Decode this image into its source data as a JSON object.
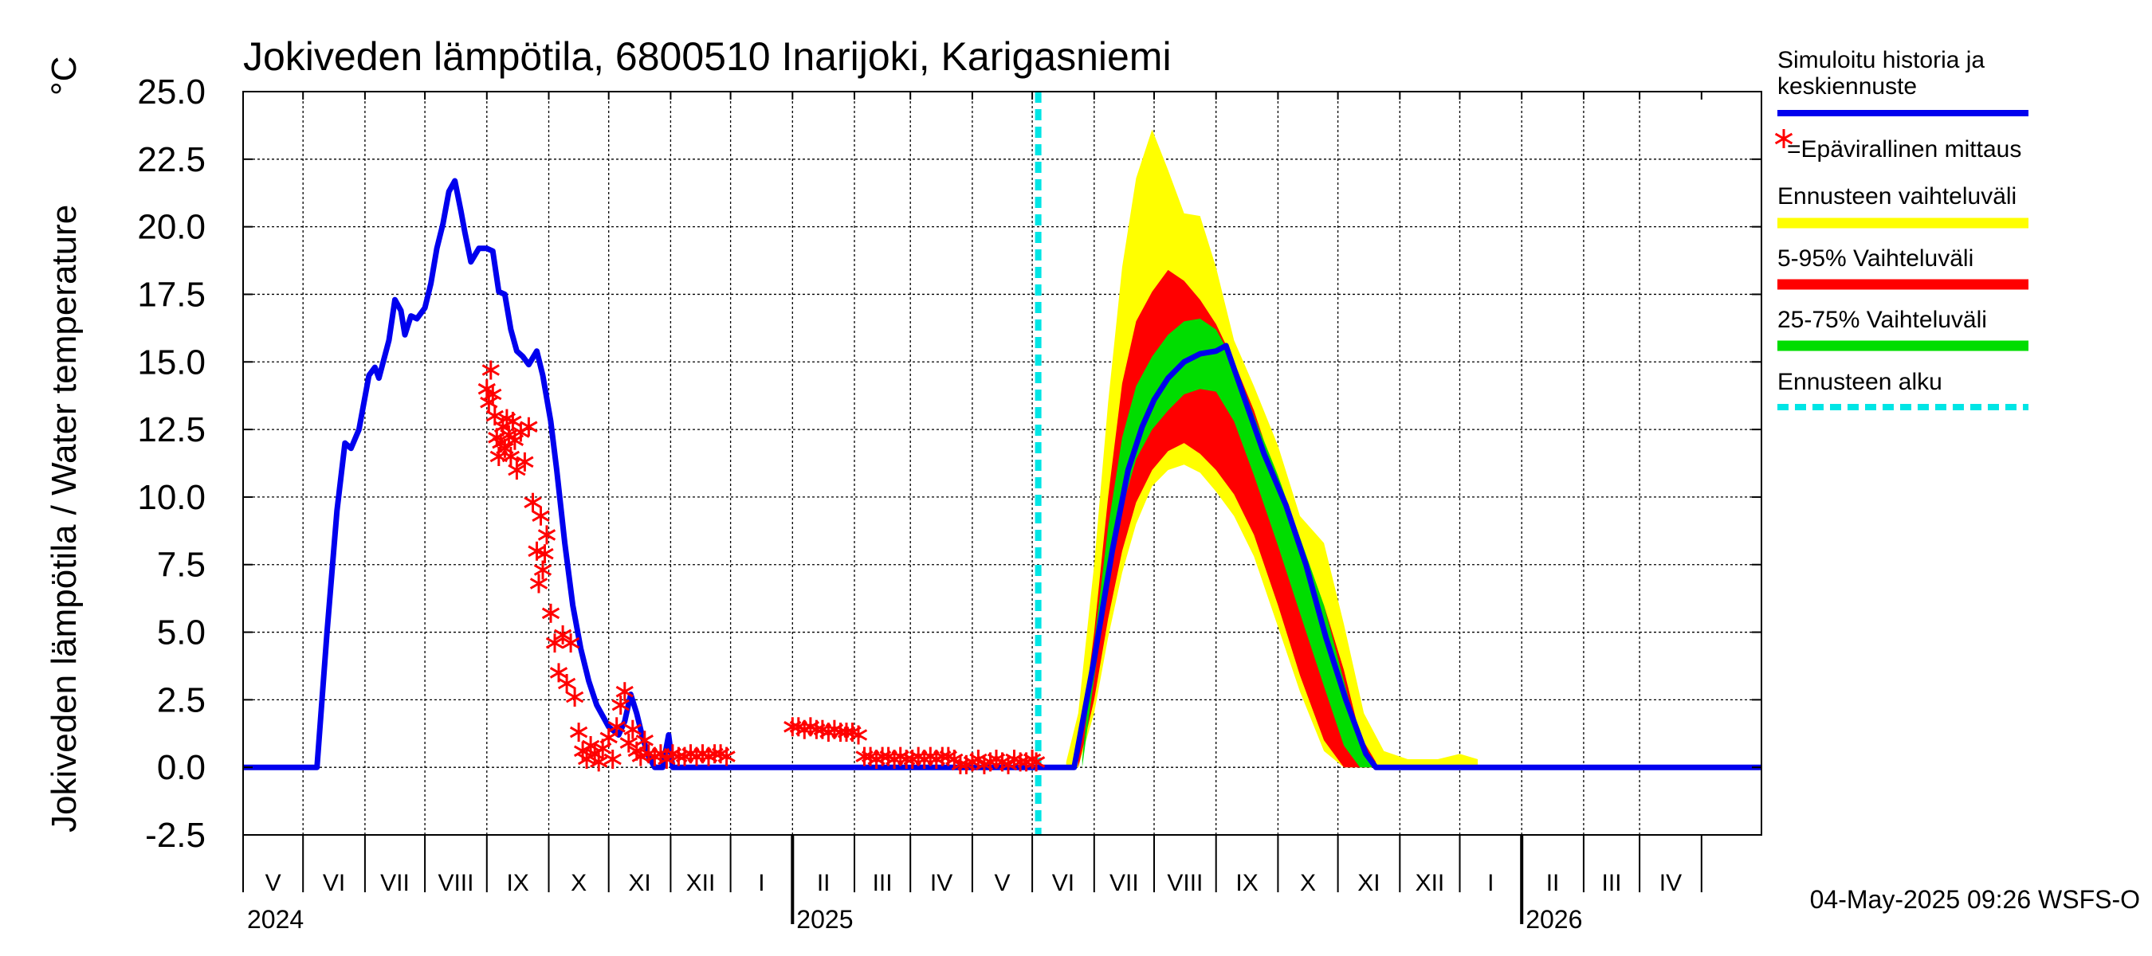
{
  "colors": {
    "simulated": "#0000ee",
    "observed": "#ff0000",
    "range_full": "#ffff00",
    "range_5_95": "#ff0000",
    "range_25_75": "#00dd00",
    "forecast_start": "#00e5e5"
  },
  "chart_data": {
    "type": "line",
    "title": "Jokiveden lämpötila, 6800510 Inarijoki, Karigasniemi",
    "ylabel": "Jokiveden lämpötila / Water temperature",
    "yunit": "°C",
    "ylim": [
      -2.5,
      25.0
    ],
    "yticks": [
      "25.0",
      "22.5",
      "20.0",
      "17.5",
      "15.0",
      "12.5",
      "10.0",
      "7.5",
      "5.0",
      "2.5",
      "0.0",
      "-2.5"
    ],
    "xlim": [
      "2024-04-01",
      "2026-05-01"
    ],
    "x_months": [
      "V",
      "VI",
      "VII",
      "VIII",
      "IX",
      "X",
      "XI",
      "XII",
      "I",
      "II",
      "III",
      "IV",
      "V",
      "VI",
      "VII",
      "VIII",
      "IX",
      "X",
      "XI",
      "XII",
      "I",
      "II",
      "III",
      "IV"
    ],
    "x_years": [
      "2024",
      "2025",
      "2026"
    ],
    "grid": true,
    "forecast_start_date": "2025-05-04",
    "legend": {
      "items": [
        {
          "label": "Simuloitu historia ja",
          "label2": "keskiennuste",
          "color": "#0000ee",
          "style": "line"
        },
        {
          "label": "=Epävirallinen mittaus",
          "color": "#ff0000",
          "style": "marker"
        },
        {
          "label": "Ennusteen vaihteluväli",
          "color": "#ffff00",
          "style": "band"
        },
        {
          "label": "5-95% Vaihteluväli",
          "color": "#ff0000",
          "style": "band"
        },
        {
          "label": "25-75% Vaihteluväli",
          "color": "#00dd00",
          "style": "band"
        },
        {
          "label": "Ennusteen alku",
          "color": "#00e5e5",
          "style": "dashed"
        }
      ]
    },
    "footer": "04-May-2025 09:26 WSFS-O",
    "series": [
      {
        "name": "Simuloitu historia ja keskiennuste",
        "kind": "line",
        "points": [
          [
            "2024-04-01",
            0.0
          ],
          [
            "2024-05-08",
            0.0
          ],
          [
            "2024-05-13",
            5.0
          ],
          [
            "2024-05-18",
            9.5
          ],
          [
            "2024-05-22",
            12.0
          ],
          [
            "2024-05-25",
            11.8
          ],
          [
            "2024-05-29",
            12.5
          ],
          [
            "2024-06-03",
            14.5
          ],
          [
            "2024-06-06",
            14.8
          ],
          [
            "2024-06-08",
            14.4
          ],
          [
            "2024-06-13",
            15.8
          ],
          [
            "2024-06-16",
            17.3
          ],
          [
            "2024-06-19",
            16.9
          ],
          [
            "2024-06-21",
            16.0
          ],
          [
            "2024-06-24",
            16.7
          ],
          [
            "2024-06-27",
            16.6
          ],
          [
            "2024-07-01",
            17.0
          ],
          [
            "2024-07-04",
            17.9
          ],
          [
            "2024-07-07",
            19.2
          ],
          [
            "2024-07-10",
            20.1
          ],
          [
            "2024-07-13",
            21.3
          ],
          [
            "2024-07-16",
            21.7
          ],
          [
            "2024-07-19",
            20.6
          ],
          [
            "2024-07-21",
            19.8
          ],
          [
            "2024-07-24",
            18.7
          ],
          [
            "2024-07-28",
            19.2
          ],
          [
            "2024-08-01",
            19.2
          ],
          [
            "2024-08-04",
            19.1
          ],
          [
            "2024-08-07",
            17.6
          ],
          [
            "2024-08-10",
            17.5
          ],
          [
            "2024-08-13",
            16.2
          ],
          [
            "2024-08-16",
            15.4
          ],
          [
            "2024-08-19",
            15.2
          ],
          [
            "2024-08-22",
            14.9
          ],
          [
            "2024-08-26",
            15.4
          ],
          [
            "2024-08-29",
            14.5
          ],
          [
            "2024-09-02",
            12.8
          ],
          [
            "2024-09-05",
            11.0
          ],
          [
            "2024-09-09",
            8.3
          ],
          [
            "2024-09-13",
            6.0
          ],
          [
            "2024-09-17",
            4.4
          ],
          [
            "2024-09-21",
            3.2
          ],
          [
            "2024-09-25",
            2.3
          ],
          [
            "2024-10-01",
            1.5
          ],
          [
            "2024-10-06",
            1.2
          ],
          [
            "2024-10-09",
            1.7
          ],
          [
            "2024-10-12",
            2.7
          ],
          [
            "2024-10-15",
            2.0
          ],
          [
            "2024-10-18",
            1.1
          ],
          [
            "2024-10-21",
            0.4
          ],
          [
            "2024-10-24",
            0.0
          ],
          [
            "2024-10-28",
            0.0
          ],
          [
            "2024-10-31",
            1.2
          ],
          [
            "2024-11-02",
            0.0
          ],
          [
            "2025-05-10",
            0.0
          ],
          [
            "2025-05-22",
            0.0
          ],
          [
            "2025-06-01",
            4.0
          ],
          [
            "2025-06-10",
            8.0
          ],
          [
            "2025-06-18",
            11.0
          ],
          [
            "2025-06-25",
            12.6
          ],
          [
            "2025-07-01",
            13.6
          ],
          [
            "2025-07-08",
            14.4
          ],
          [
            "2025-07-16",
            15.0
          ],
          [
            "2025-07-24",
            15.3
          ],
          [
            "2025-08-01",
            15.4
          ],
          [
            "2025-08-06",
            15.6
          ],
          [
            "2025-08-15",
            13.7
          ],
          [
            "2025-08-25",
            11.6
          ],
          [
            "2025-09-05",
            9.7
          ],
          [
            "2025-09-15",
            7.5
          ],
          [
            "2025-09-25",
            4.8
          ],
          [
            "2025-10-05",
            2.5
          ],
          [
            "2025-10-15",
            0.5
          ],
          [
            "2025-10-20",
            0.0
          ],
          [
            "2026-05-01",
            0.0
          ]
        ]
      },
      {
        "name": "Epävirallinen mittaus",
        "kind": "markers",
        "points": [
          [
            "2024-08-01",
            14.0
          ],
          [
            "2024-08-02",
            13.5
          ],
          [
            "2024-08-03",
            14.7
          ],
          [
            "2024-08-04",
            13.8
          ],
          [
            "2024-08-05",
            13.0
          ],
          [
            "2024-08-06",
            12.2
          ],
          [
            "2024-08-07",
            11.5
          ],
          [
            "2024-08-08",
            12.0
          ],
          [
            "2024-08-09",
            12.6
          ],
          [
            "2024-08-10",
            11.8
          ],
          [
            "2024-08-11",
            12.9
          ],
          [
            "2024-08-12",
            12.3
          ],
          [
            "2024-08-13",
            11.5
          ],
          [
            "2024-08-14",
            12.8
          ],
          [
            "2024-08-15",
            12.1
          ],
          [
            "2024-08-16",
            11.0
          ],
          [
            "2024-08-18",
            12.4
          ],
          [
            "2024-08-20",
            11.3
          ],
          [
            "2024-08-22",
            12.6
          ],
          [
            "2024-08-24",
            9.8
          ],
          [
            "2024-08-26",
            8.0
          ],
          [
            "2024-08-27",
            6.8
          ],
          [
            "2024-08-28",
            9.3
          ],
          [
            "2024-08-29",
            7.3
          ],
          [
            "2024-08-30",
            7.9
          ],
          [
            "2024-08-31",
            8.6
          ],
          [
            "2024-09-02",
            5.7
          ],
          [
            "2024-09-04",
            4.6
          ],
          [
            "2024-09-06",
            3.5
          ],
          [
            "2024-09-08",
            4.9
          ],
          [
            "2024-09-10",
            3.1
          ],
          [
            "2024-09-12",
            4.6
          ],
          [
            "2024-09-14",
            2.6
          ],
          [
            "2024-09-16",
            1.3
          ],
          [
            "2024-09-18",
            0.6
          ],
          [
            "2024-09-20",
            0.3
          ],
          [
            "2024-09-22",
            0.8
          ],
          [
            "2024-09-24",
            0.5
          ],
          [
            "2024-09-26",
            0.2
          ],
          [
            "2024-09-28",
            0.7
          ],
          [
            "2024-10-01",
            1.1
          ],
          [
            "2024-10-03",
            0.3
          ],
          [
            "2024-10-05",
            1.5
          ],
          [
            "2024-10-07",
            2.3
          ],
          [
            "2024-10-09",
            2.8
          ],
          [
            "2024-10-11",
            0.9
          ],
          [
            "2024-10-13",
            1.4
          ],
          [
            "2024-10-15",
            0.6
          ],
          [
            "2024-10-17",
            0.4
          ],
          [
            "2024-10-19",
            1.0
          ],
          [
            "2024-10-21",
            0.5
          ],
          [
            "2024-10-24",
            0.4
          ],
          [
            "2024-10-27",
            0.5
          ],
          [
            "2024-10-30",
            0.3
          ],
          [
            "2024-11-02",
            0.5
          ],
          [
            "2024-11-05",
            0.4
          ],
          [
            "2024-11-08",
            0.4
          ],
          [
            "2024-11-11",
            0.5
          ],
          [
            "2024-11-14",
            0.4
          ],
          [
            "2024-11-17",
            0.5
          ],
          [
            "2024-11-20",
            0.4
          ],
          [
            "2024-11-23",
            0.5
          ],
          [
            "2024-11-26",
            0.5
          ],
          [
            "2024-11-29",
            0.4
          ],
          [
            "2025-01-01",
            1.5
          ],
          [
            "2025-01-04",
            1.5
          ],
          [
            "2025-01-07",
            1.4
          ],
          [
            "2025-01-10",
            1.5
          ],
          [
            "2025-01-13",
            1.4
          ],
          [
            "2025-01-16",
            1.4
          ],
          [
            "2025-01-19",
            1.3
          ],
          [
            "2025-01-22",
            1.4
          ],
          [
            "2025-01-25",
            1.3
          ],
          [
            "2025-01-28",
            1.3
          ],
          [
            "2025-01-31",
            1.3
          ],
          [
            "2025-02-03",
            1.2
          ],
          [
            "2025-02-06",
            0.4
          ],
          [
            "2025-02-09",
            0.4
          ],
          [
            "2025-02-12",
            0.3
          ],
          [
            "2025-02-15",
            0.4
          ],
          [
            "2025-02-18",
            0.4
          ],
          [
            "2025-02-21",
            0.3
          ],
          [
            "2025-02-24",
            0.4
          ],
          [
            "2025-02-27",
            0.3
          ],
          [
            "2025-03-02",
            0.3
          ],
          [
            "2025-03-05",
            0.4
          ],
          [
            "2025-03-08",
            0.3
          ],
          [
            "2025-03-11",
            0.4
          ],
          [
            "2025-03-14",
            0.3
          ],
          [
            "2025-03-17",
            0.4
          ],
          [
            "2025-03-20",
            0.4
          ],
          [
            "2025-03-23",
            0.3
          ],
          [
            "2025-03-26",
            0.1
          ],
          [
            "2025-03-29",
            0.1
          ],
          [
            "2025-04-01",
            0.2
          ],
          [
            "2025-04-04",
            0.3
          ],
          [
            "2025-04-07",
            0.1
          ],
          [
            "2025-04-10",
            0.2
          ],
          [
            "2025-04-13",
            0.3
          ],
          [
            "2025-04-16",
            0.2
          ],
          [
            "2025-04-19",
            0.1
          ],
          [
            "2025-04-22",
            0.3
          ],
          [
            "2025-04-25",
            0.2
          ],
          [
            "2025-04-28",
            0.2
          ],
          [
            "2025-05-01",
            0.3
          ],
          [
            "2025-05-03",
            0.2
          ]
        ]
      }
    ],
    "bands": [
      {
        "name": "Ennusteen vaihteluväli",
        "dates": [
          "2025-05-18",
          "2025-05-24",
          "2025-06-01",
          "2025-06-08",
          "2025-06-15",
          "2025-06-22",
          "2025-06-30",
          "2025-07-08",
          "2025-07-16",
          "2025-07-24",
          "2025-08-01",
          "2025-08-10",
          "2025-08-20",
          "2025-09-01",
          "2025-09-12",
          "2025-09-24",
          "2025-10-04",
          "2025-10-14",
          "2025-10-24",
          "2025-11-05",
          "2025-11-20",
          "2025-12-01",
          "2025-12-10"
        ],
        "lower": [
          0.0,
          0.0,
          2.0,
          4.8,
          7.2,
          9.0,
          10.4,
          11.0,
          11.2,
          10.9,
          10.2,
          9.3,
          7.8,
          5.2,
          2.8,
          0.6,
          0.0,
          0.0,
          0.0,
          0.0,
          0.0,
          0.0,
          0.0
        ],
        "upper": [
          0.2,
          2.0,
          7.5,
          13.5,
          18.5,
          21.8,
          23.6,
          22.1,
          20.5,
          20.4,
          18.5,
          15.8,
          14.1,
          11.9,
          9.3,
          8.3,
          5.3,
          2.0,
          0.6,
          0.3,
          0.3,
          0.5,
          0.3
        ]
      },
      {
        "name": "5-95% Vaihteluväli",
        "dates": [
          "2025-05-24",
          "2025-06-01",
          "2025-06-08",
          "2025-06-15",
          "2025-06-22",
          "2025-06-30",
          "2025-07-08",
          "2025-07-16",
          "2025-07-24",
          "2025-08-01",
          "2025-08-10",
          "2025-08-20",
          "2025-09-01",
          "2025-09-12",
          "2025-09-24",
          "2025-10-04",
          "2025-10-12",
          "2025-10-20"
        ],
        "lower": [
          0.0,
          2.5,
          5.5,
          8.0,
          9.8,
          11.0,
          11.7,
          12.0,
          11.6,
          11.0,
          10.1,
          8.6,
          6.0,
          3.4,
          1.0,
          0.0,
          0.0,
          0.0
        ],
        "upper": [
          0.3,
          5.0,
          10.0,
          14.2,
          16.5,
          17.6,
          18.4,
          18.0,
          17.3,
          16.4,
          15.0,
          13.2,
          10.5,
          8.0,
          6.0,
          3.6,
          1.2,
          0.2
        ]
      },
      {
        "name": "25-75% Vaihteluväli",
        "dates": [
          "2025-05-26",
          "2025-06-01",
          "2025-06-08",
          "2025-06-15",
          "2025-06-22",
          "2025-06-30",
          "2025-07-08",
          "2025-07-16",
          "2025-07-24",
          "2025-08-01",
          "2025-08-10",
          "2025-08-20",
          "2025-09-01",
          "2025-09-12",
          "2025-09-24",
          "2025-10-04",
          "2025-10-12",
          "2025-10-18"
        ],
        "lower": [
          0.0,
          3.3,
          6.8,
          9.6,
          11.4,
          12.5,
          13.2,
          13.8,
          14.0,
          13.9,
          12.8,
          10.8,
          8.2,
          5.7,
          3.0,
          0.8,
          0.0,
          0.0
        ],
        "upper": [
          0.3,
          4.6,
          8.9,
          12.2,
          14.1,
          15.2,
          16.0,
          16.5,
          16.6,
          16.2,
          15.0,
          13.0,
          10.8,
          8.5,
          6.0,
          3.2,
          1.0,
          0.2
        ]
      }
    ]
  }
}
